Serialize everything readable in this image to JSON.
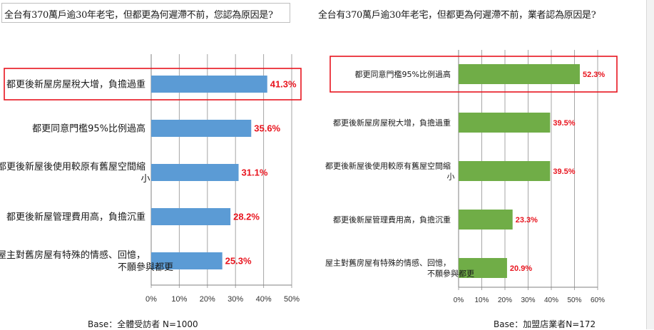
{
  "left": {
    "title": "全台有370萬戶逾30年老宅，但都更為何遲滯不前，您認為原因是?",
    "base": "Base：全體受訪者 N=1000",
    "highlight_index": 0,
    "chart_data": {
      "type": "bar",
      "orientation": "horizontal",
      "categories": [
        "都更後新屋房屋稅大增，負擔過重",
        "都更同意門檻95%比例過高",
        "都更後新屋後使用較原有舊屋空間縮小",
        "都更後新屋管理費用高，負擔沉重",
        "屋主對舊房屋有特殊的情感、回憶，不願參與都更"
      ],
      "category_lines": [
        [
          "都更後新屋房屋稅大增，負擔過重"
        ],
        [
          "都更同意門檻95%比例過高"
        ],
        [
          "都更後新屋後使用較原有舊屋空間縮",
          "小"
        ],
        [
          "都更後新屋管理費用高，負擔沉重"
        ],
        [
          "屋主對舊房屋有特殊的情感、回憶，",
          "不願參與都更"
        ]
      ],
      "values": [
        41.3,
        35.6,
        31.1,
        28.2,
        25.3
      ],
      "value_labels": [
        "41.3%",
        "35.6%",
        "31.1%",
        "28.2%",
        "25.3%"
      ],
      "xlim": [
        0,
        50
      ],
      "ticks": [
        "0%",
        "10%",
        "20%",
        "30%",
        "40%",
        "50%"
      ],
      "grid": true,
      "bar_color": "#5b9bd5",
      "label_color": "#e8141e"
    }
  },
  "right": {
    "title": "全台有370萬戶逾30年老宅，但都更為何遲滯不前，業者認為原因是?",
    "base": "Base：加盟店業者N=172",
    "highlight_index": 0,
    "chart_data": {
      "type": "bar",
      "orientation": "horizontal",
      "categories": [
        "都更同意門檻95%比例過高",
        "都更後新屋房屋稅大增，負擔過重",
        "都更後新屋後使用較原有舊屋空間縮小",
        "都更後新屋管理費用高，負擔沉重",
        "屋主對舊房屋有特殊的情感、回憶，不願參與都更"
      ],
      "category_lines": [
        [
          "都更同意門檻95%比例過高"
        ],
        [
          "都更後新屋房屋稅大增，負擔過重"
        ],
        [
          "都更後新屋後使用較原有舊屋空間縮",
          "小"
        ],
        [
          "都更後新屋管理費用高，負擔沉重"
        ],
        [
          "屋主對舊房屋有特殊的情感、回憶，",
          "不願參與都更"
        ]
      ],
      "values": [
        52.3,
        39.5,
        39.5,
        23.3,
        20.9
      ],
      "value_labels": [
        "52.3%",
        "39.5%",
        "39.5%",
        "23.3%",
        "20.9%"
      ],
      "xlim": [
        0,
        60
      ],
      "ticks": [
        "0%",
        "10%",
        "20%",
        "30%",
        "40%",
        "50%",
        "60%"
      ],
      "grid": true,
      "bar_color": "#70ad47",
      "label_color": "#e8141e"
    }
  }
}
